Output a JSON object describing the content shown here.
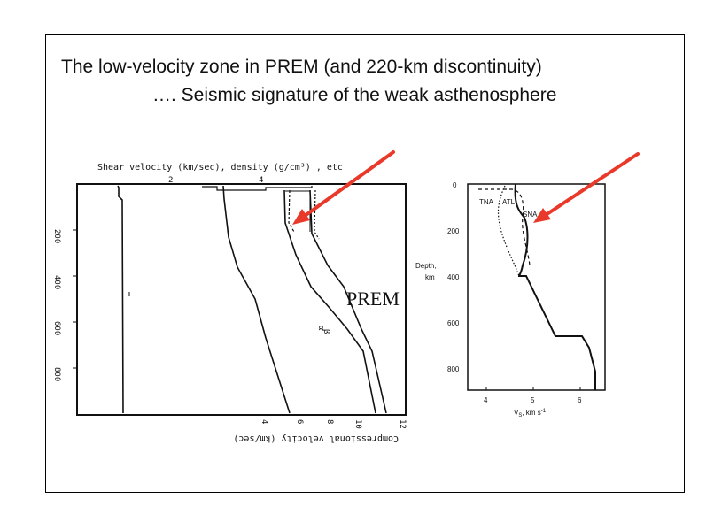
{
  "slide": {
    "title_line1": "The low-velocity zone in PREM (and 220-km discontinuity)",
    "title_line2": "…. Seismic signature of the weak asthenosphere"
  },
  "left_figure": {
    "top_axis_label": "Shear velocity (km/sec), density (g/cm³) , etc",
    "top_ticks": [
      "2",
      "4"
    ],
    "bottom_axis_label": "Compressional velocity (km/sec)",
    "bottom_ticks": [
      "4",
      "6",
      "8",
      "10",
      "12"
    ],
    "depth_ticks": [
      "200",
      "400",
      "600",
      "800"
    ],
    "curve_labels": [
      "α",
      "β"
    ],
    "model_label": "PREM"
  },
  "right_figure": {
    "y_axis_title_1": "Depth,",
    "y_axis_title_2": "km",
    "y_ticks": [
      "0",
      "200",
      "400",
      "600",
      "800"
    ],
    "x_ticks": [
      "4",
      "5",
      "6"
    ],
    "x_axis_title": "V",
    "x_axis_sub": "S",
    "x_axis_units": ", km s",
    "x_axis_exp": "-1",
    "curve_labels": [
      "TNA",
      "ATL",
      "SNA"
    ]
  },
  "colors": {
    "arrow": "#e8392a",
    "ink": "#111111"
  }
}
